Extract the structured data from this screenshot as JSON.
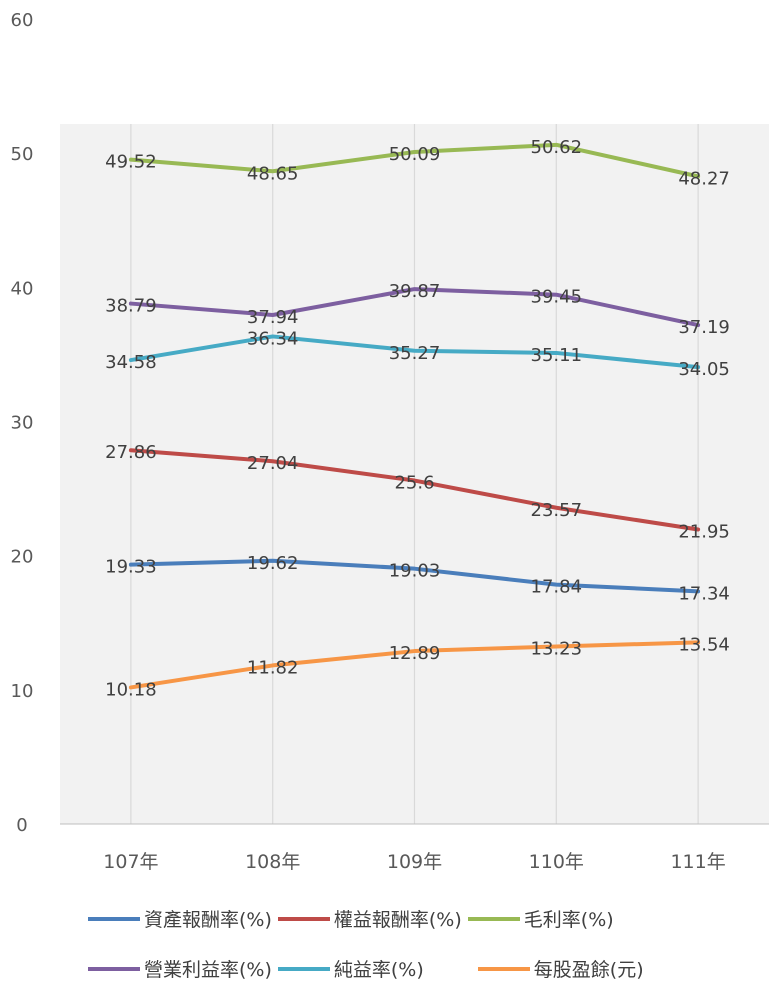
{
  "chart_data": {
    "type": "line",
    "title": "",
    "xlabel": "",
    "ylabel": "",
    "ylim": [
      0,
      60
    ],
    "yticks": [
      0,
      10,
      20,
      30,
      40,
      50,
      60
    ],
    "grid": "vertical",
    "legend_position": "bottom",
    "categories": [
      "107年",
      "108年",
      "109年",
      "110年",
      "111年"
    ],
    "series": [
      {
        "name": "資產報酬率(%)",
        "color": "#4a7ebb",
        "values": [
          19.33,
          19.62,
          19.03,
          17.84,
          17.34
        ],
        "labels": [
          "19.33",
          "19.62",
          "19.03",
          "17.84",
          "17.34"
        ]
      },
      {
        "name": "權益報酬率(%)",
        "color": "#be4b48",
        "values": [
          27.86,
          27.04,
          25.6,
          23.57,
          21.95
        ],
        "labels": [
          "27.86",
          "27.04",
          "25.6",
          "23.57",
          "21.95"
        ]
      },
      {
        "name": "毛利率(%)",
        "color": "#98b954",
        "values": [
          49.52,
          48.65,
          50.09,
          50.62,
          48.27
        ],
        "labels": [
          "49.52",
          "48.65",
          "50.09",
          "50.62",
          "48.27"
        ]
      },
      {
        "name": "營業利益率(%)",
        "color": "#7d5fa0",
        "values": [
          38.79,
          37.94,
          39.87,
          39.45,
          37.19
        ],
        "labels": [
          "38.79",
          "37.94",
          "39.87",
          "39.45",
          "37.19"
        ]
      },
      {
        "name": "純益率(%)",
        "color": "#46aac5",
        "values": [
          34.58,
          36.34,
          35.27,
          35.11,
          34.05
        ],
        "labels": [
          "34.58",
          "36.34",
          "35.27",
          "35.11",
          "34.05"
        ]
      },
      {
        "name": "每股盈餘(元)",
        "color": "#f79646",
        "values": [
          10.18,
          11.82,
          12.89,
          13.23,
          13.54
        ],
        "labels": [
          "10.18",
          "11.82",
          "12.89",
          "13.23",
          "13.54"
        ]
      }
    ]
  }
}
